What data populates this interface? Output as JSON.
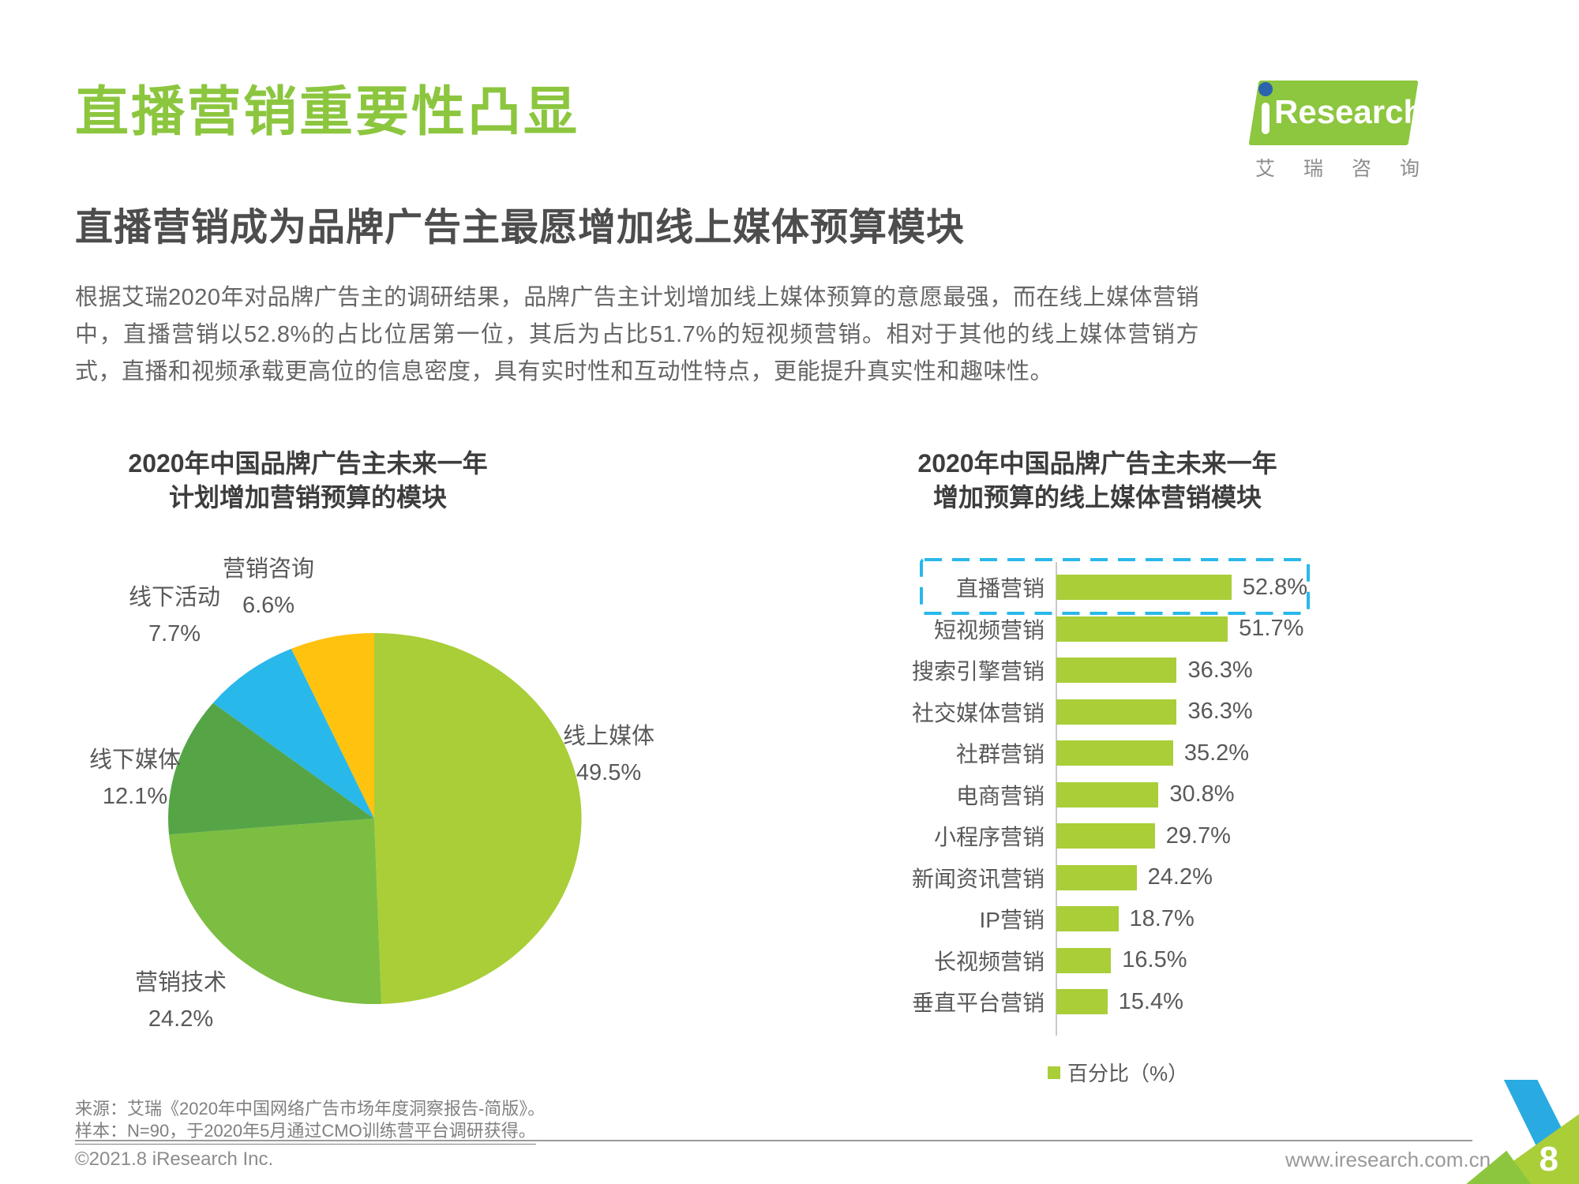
{
  "page": {
    "title": "直播营销重要性凸显",
    "subtitle": "直播营销成为品牌广告主最愿增加线上媒体预算模块",
    "paragraph": "根据艾瑞2020年对品牌广告主的调研结果，品牌广告主计划增加线上媒体预算的意愿最强，而在线上媒体营销中，直播营销以52.8%的占比位居第一位，其后为占比51.7%的短视频营销。相对于其他的线上媒体营销方式，直播和视频承载更高位的信息密度，具有实时性和互动性特点，更能提升真实性和趣味性。",
    "page_number": "8"
  },
  "logo": {
    "brand_word": "Research",
    "cn_name": "艾瑞咨询"
  },
  "footer": {
    "source_line1": "来源：艾瑞《2020年中国网络广告市场年度洞察报告-简版》。",
    "source_line2": "样本：N=90，于2020年5月通过CMO训练营平台调研获得。",
    "copyright": "©2021.8 iResearch Inc.",
    "website": "www.iresearch.com.cn"
  },
  "colors": {
    "title_green": "#8CC63F",
    "bar_green": "#A9CE38",
    "highlight_cyan": "#29B8EA",
    "logo_dot_blue": "#2B63AD"
  },
  "chart_data": [
    {
      "type": "pie",
      "title_line1": "2020年中国品牌广告主未来一年",
      "title_line2": "计划增加营销预算的模块",
      "labels": [
        "线上媒体",
        "营销技术",
        "线下媒体",
        "线下活动",
        "营销咨询"
      ],
      "values": [
        49.5,
        24.2,
        12.1,
        7.7,
        6.6
      ],
      "value_labels": [
        "49.5%",
        "24.2%",
        "12.1%",
        "7.7%",
        "6.6%"
      ],
      "colors": [
        "#A9CE38",
        "#7CBE41",
        "#55A546",
        "#29B8EA",
        "#FFC20E"
      ],
      "start_angle_deg": 0,
      "direction": "clockwise"
    },
    {
      "type": "bar",
      "orientation": "horizontal",
      "title_line1": "2020年中国品牌广告主未来一年",
      "title_line2": "增加预算的线上媒体营销模块",
      "categories": [
        "直播营销",
        "短视频营销",
        "搜索引擎营销",
        "社交媒体营销",
        "社群营销",
        "电商营销",
        "小程序营销",
        "新闻资讯营销",
        "IP营销",
        "长视频营销",
        "垂直平台营销"
      ],
      "values": [
        52.8,
        51.7,
        36.3,
        36.3,
        35.2,
        30.8,
        29.7,
        24.2,
        18.7,
        16.5,
        15.4
      ],
      "value_labels": [
        "52.8%",
        "51.7%",
        "36.3%",
        "36.3%",
        "35.2%",
        "30.8%",
        "29.7%",
        "24.2%",
        "18.7%",
        "16.5%",
        "15.4%"
      ],
      "bar_color": "#A9CE38",
      "legend": "百分比（%）",
      "highlighted_category": "直播营销",
      "highlight_color": "#29B8EA",
      "xlim": [
        0,
        60
      ],
      "grid": false,
      "legend_position": "bottom-right"
    }
  ]
}
